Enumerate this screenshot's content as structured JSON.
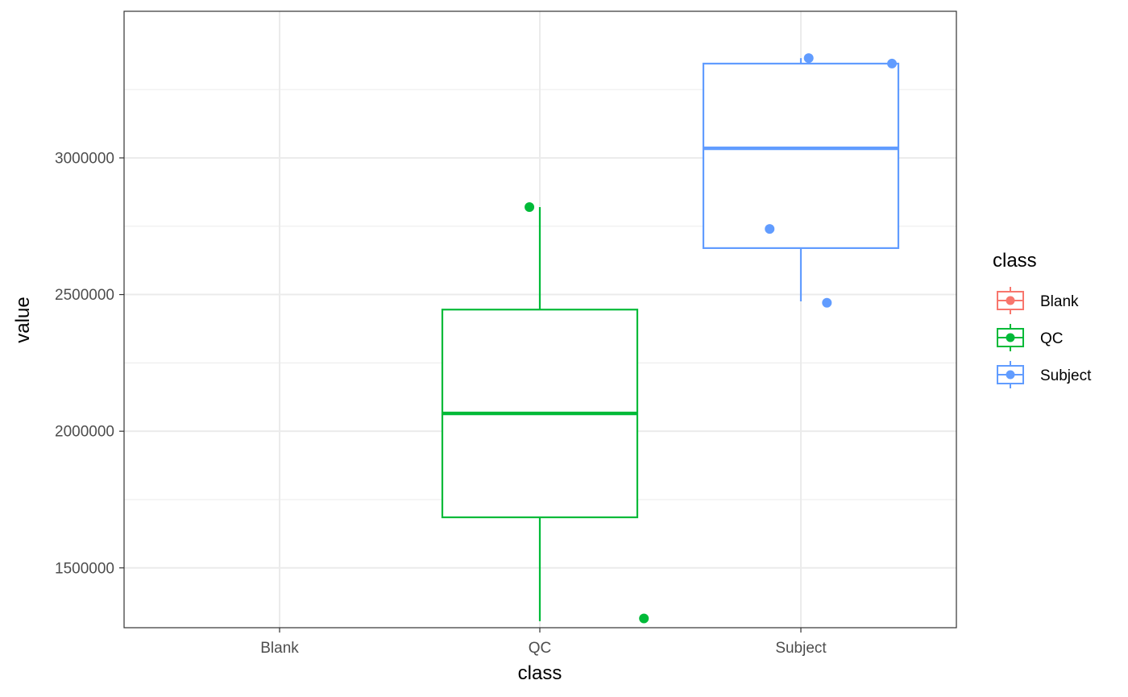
{
  "chart_data": {
    "type": "boxplot",
    "xlabel": "class",
    "ylabel": "value",
    "categories": [
      "Blank",
      "QC",
      "Subject"
    ],
    "ylim": [
      1250000,
      3480000
    ],
    "yticks_major": [
      1500000,
      2000000,
      2500000,
      3000000
    ],
    "ytick_labels": [
      "1500000",
      "2000000",
      "2500000",
      "3000000"
    ],
    "grid": true,
    "legend": {
      "title": "class",
      "position": "right",
      "entries": [
        {
          "label": "Blank",
          "color": "#F8766D"
        },
        {
          "label": "QC",
          "color": "#00BA38"
        },
        {
          "label": "Subject",
          "color": "#619CFF"
        }
      ]
    },
    "boxes": [
      {
        "category": "QC",
        "color": "#00BA38",
        "whisker_low": 1305000,
        "q1": 1685000,
        "median": 2065000,
        "q3": 2445000,
        "whisker_high": 2820000
      },
      {
        "category": "Subject",
        "color": "#619CFF",
        "whisker_low": 2475000,
        "q1": 2670000,
        "median": 3035000,
        "q3": 3345000,
        "whisker_high": 3365000
      }
    ],
    "points": [
      {
        "category": "QC",
        "jitter": -0.04,
        "value": 2820000,
        "color": "#00BA38"
      },
      {
        "category": "QC",
        "jitter": 0.4,
        "value": 1315000,
        "color": "#00BA38"
      },
      {
        "category": "Subject",
        "jitter": -0.12,
        "value": 2740000,
        "color": "#619CFF"
      },
      {
        "category": "Subject",
        "jitter": 0.03,
        "value": 3365000,
        "color": "#619CFF"
      },
      {
        "category": "Subject",
        "jitter": 0.35,
        "value": 3345000,
        "color": "#619CFF"
      },
      {
        "category": "Subject",
        "jitter": 0.1,
        "value": 2470000,
        "color": "#619CFF"
      }
    ]
  }
}
